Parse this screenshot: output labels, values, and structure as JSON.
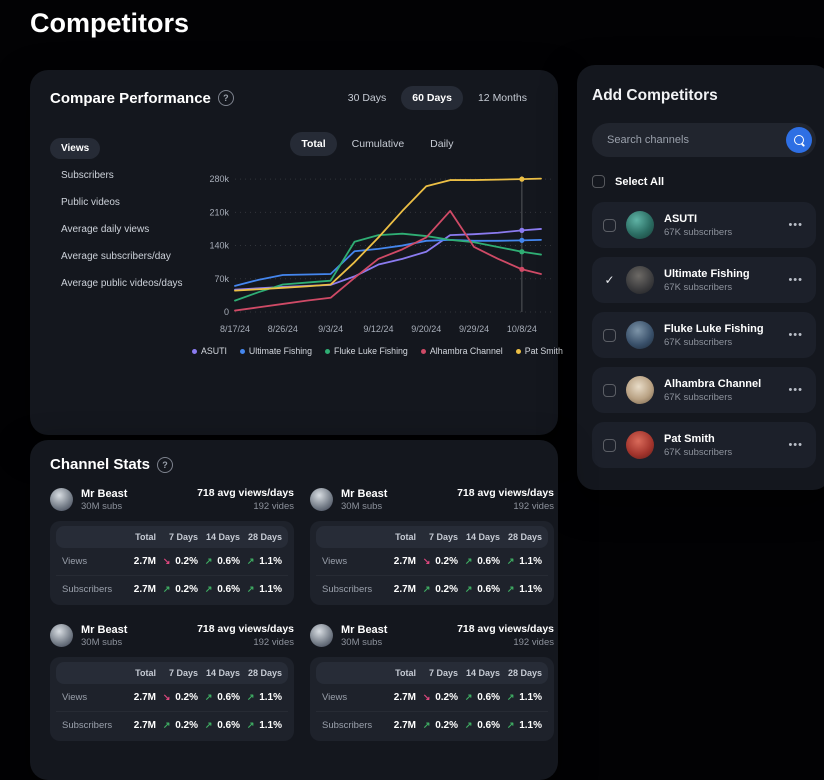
{
  "page": {
    "title": "Competitors"
  },
  "icons": {
    "help": "?",
    "search": "magnifier",
    "menu": "...",
    "check": "✓",
    "arrow_up": "↗",
    "arrow_down": "↘"
  },
  "colors": {
    "background": "#020204",
    "panel": "#14171e",
    "card": "#1e222b",
    "pill": "#262b36",
    "accent_blue": "#2e6fe4",
    "positive": "#3fae63",
    "negative": "#e0487f",
    "series_purple": "#8b7bf0",
    "series_blue": "#4486ee",
    "series_green": "#2fae74",
    "series_red": "#cf4a66",
    "series_yellow": "#ecbf45"
  },
  "compare_performance": {
    "title": "Compare Performance",
    "range_tabs": [
      {
        "label": "30 Days",
        "active": false
      },
      {
        "label": "60 Days",
        "active": true
      },
      {
        "label": "12 Months",
        "active": false
      }
    ],
    "metric_tabs": [
      {
        "label": "Views",
        "active": true
      },
      {
        "label": "Subscribers",
        "active": false
      },
      {
        "label": "Public videos",
        "active": false
      },
      {
        "label": "Average daily views",
        "active": false
      },
      {
        "label": "Average subscribers/day",
        "active": false
      },
      {
        "label": "Average public videos/days",
        "active": false
      }
    ],
    "mode_tabs": [
      {
        "label": "Total",
        "active": true
      },
      {
        "label": "Cumulative",
        "active": false
      },
      {
        "label": "Daily",
        "active": false
      }
    ]
  },
  "chart_data": {
    "type": "line",
    "title": "",
    "xlabel": "",
    "ylabel": "",
    "x_tick_labels": [
      "8/17/24",
      "8/26/24",
      "9/3/24",
      "9/12/24",
      "9/20/24",
      "9/29/24",
      "10/8/24"
    ],
    "y_tick_labels": [
      "0",
      "70k",
      "140k",
      "210k",
      "280k"
    ],
    "y_tick_values_k": [
      0,
      70,
      140,
      210,
      280
    ],
    "ylim_k": [
      0,
      295
    ],
    "values_unit": "thousands of views (k)",
    "grid": "dotted-horizontal",
    "legend_position": "bottom",
    "x_positions": [
      0,
      0.5,
      1,
      1.5,
      2,
      2.5,
      3,
      3.5,
      4,
      4.5,
      5,
      5.5,
      6,
      6.4
    ],
    "marker_index": 12,
    "crosshair_x": 6,
    "series": [
      {
        "name": "ASUTI",
        "color": "#8b7bf0",
        "values_k": [
          47,
          50,
          53,
          55,
          57,
          75,
          100,
          112,
          127,
          162,
          164,
          167,
          172,
          175
        ]
      },
      {
        "name": "Ultimate Fishing",
        "color": "#4486ee",
        "values_k": [
          55,
          68,
          78,
          79,
          80,
          128,
          133,
          140,
          150,
          152,
          150,
          150,
          151,
          152
        ]
      },
      {
        "name": "Fluke Luke Fishing",
        "color": "#2fae74",
        "values_k": [
          24,
          42,
          58,
          62,
          66,
          148,
          162,
          165,
          160,
          152,
          147,
          137,
          127,
          121
        ]
      },
      {
        "name": "Alhambra Channel",
        "color": "#cf4a66",
        "values_k": [
          3,
          10,
          17,
          24,
          30,
          72,
          112,
          132,
          157,
          213,
          137,
          112,
          90,
          80
        ]
      },
      {
        "name": "Pat Smith",
        "color": "#ecbf45",
        "values_k": [
          45,
          48,
          51,
          54,
          58,
          105,
          157,
          213,
          265,
          278,
          278,
          279,
          280,
          281
        ]
      }
    ]
  },
  "add_competitors": {
    "title": "Add Competitors",
    "search_placeholder": "Search channels",
    "select_all_label": "Select All",
    "channels": [
      {
        "name": "ASUTI",
        "subscribers": "67K subscribers",
        "checked": false
      },
      {
        "name": "Ultimate Fishing",
        "subscribers": "67K subscribers",
        "checked": true
      },
      {
        "name": "Fluke Luke Fishing",
        "subscribers": "67K subscribers",
        "checked": false
      },
      {
        "name": "Alhambra Channel",
        "subscribers": "67K subscribers",
        "checked": false
      },
      {
        "name": "Pat Smith",
        "subscribers": "67K subscribers",
        "checked": false
      }
    ]
  },
  "channel_stats": {
    "title": "Channel Stats",
    "table_headers": [
      "",
      "Total",
      "7 Days",
      "14 Days",
      "28 Days"
    ],
    "cards": [
      {
        "channel": "Mr Beast",
        "subs": "30M subs",
        "avg": "718 avg views/days",
        "videos": "192 vides",
        "rows": [
          {
            "label": "Views",
            "total": "2.7M",
            "changes": [
              {
                "dir": "down",
                "value": "0.2%"
              },
              {
                "dir": "up",
                "value": "0.6%"
              },
              {
                "dir": "up",
                "value": "1.1%"
              }
            ]
          },
          {
            "label": "Subscribers",
            "total": "2.7M",
            "changes": [
              {
                "dir": "up",
                "value": "0.2%"
              },
              {
                "dir": "up",
                "value": "0.6%"
              },
              {
                "dir": "up",
                "value": "1.1%"
              }
            ]
          }
        ]
      },
      {
        "channel": "Mr Beast",
        "subs": "30M subs",
        "avg": "718 avg views/days",
        "videos": "192 vides",
        "rows": [
          {
            "label": "Views",
            "total": "2.7M",
            "changes": [
              {
                "dir": "down",
                "value": "0.2%"
              },
              {
                "dir": "up",
                "value": "0.6%"
              },
              {
                "dir": "up",
                "value": "1.1%"
              }
            ]
          },
          {
            "label": "Subscribers",
            "total": "2.7M",
            "changes": [
              {
                "dir": "up",
                "value": "0.2%"
              },
              {
                "dir": "up",
                "value": "0.6%"
              },
              {
                "dir": "up",
                "value": "1.1%"
              }
            ]
          }
        ]
      },
      {
        "channel": "Mr Beast",
        "subs": "30M subs",
        "avg": "718 avg views/days",
        "videos": "192 vides",
        "rows": [
          {
            "label": "Views",
            "total": "2.7M",
            "changes": [
              {
                "dir": "down",
                "value": "0.2%"
              },
              {
                "dir": "up",
                "value": "0.6%"
              },
              {
                "dir": "up",
                "value": "1.1%"
              }
            ]
          },
          {
            "label": "Subscribers",
            "total": "2.7M",
            "changes": [
              {
                "dir": "up",
                "value": "0.2%"
              },
              {
                "dir": "up",
                "value": "0.6%"
              },
              {
                "dir": "up",
                "value": "1.1%"
              }
            ]
          }
        ]
      },
      {
        "channel": "Mr Beast",
        "subs": "30M subs",
        "avg": "718 avg views/days",
        "videos": "192 vides",
        "rows": [
          {
            "label": "Views",
            "total": "2.7M",
            "changes": [
              {
                "dir": "down",
                "value": "0.2%"
              },
              {
                "dir": "up",
                "value": "0.6%"
              },
              {
                "dir": "up",
                "value": "1.1%"
              }
            ]
          },
          {
            "label": "Subscribers",
            "total": "2.7M",
            "changes": [
              {
                "dir": "up",
                "value": "0.2%"
              },
              {
                "dir": "up",
                "value": "0.6%"
              },
              {
                "dir": "up",
                "value": "1.1%"
              }
            ]
          }
        ]
      }
    ]
  }
}
